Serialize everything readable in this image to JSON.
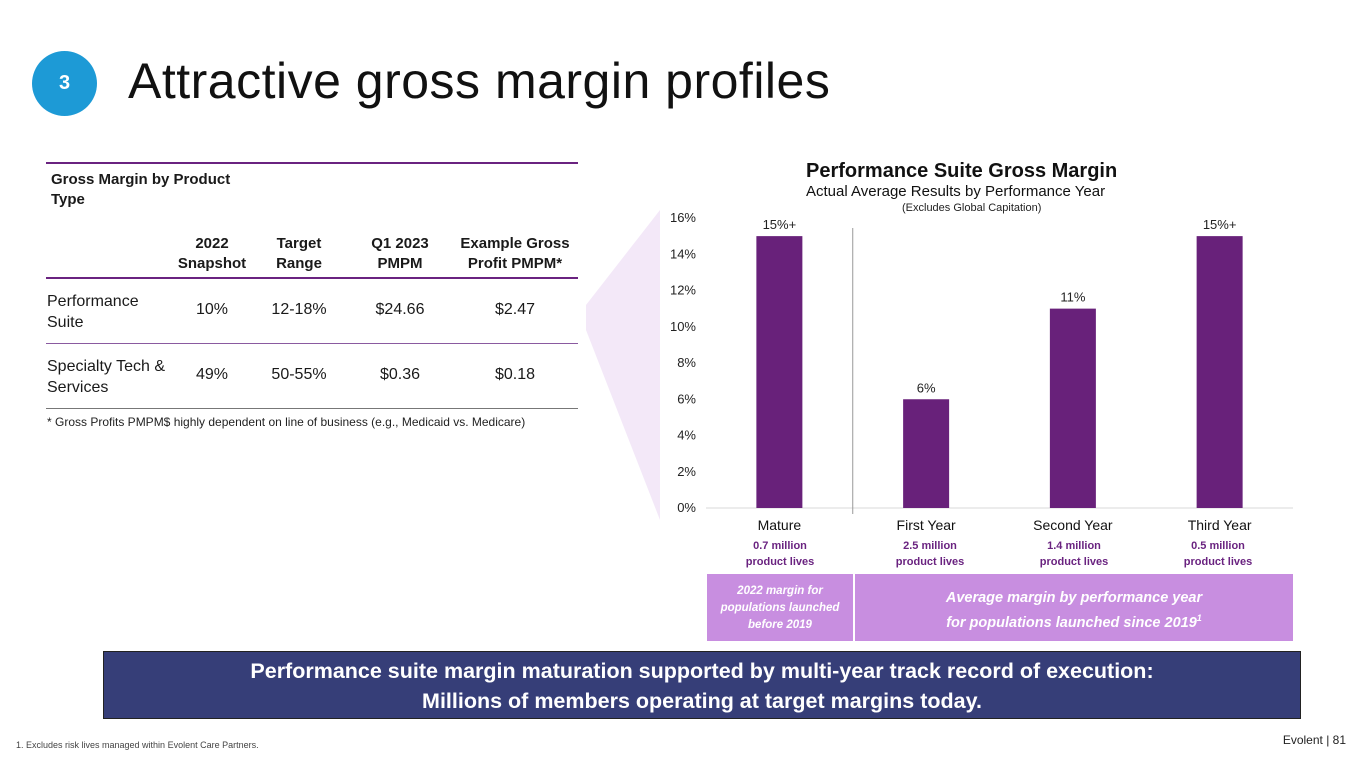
{
  "header": {
    "section_number": "3",
    "title": "Attractive gross margin profiles"
  },
  "table": {
    "caption": "Gross Margin by Product Type",
    "columns": [
      "2022 Snapshot",
      "Target Range",
      "Q1 2023 PMPM",
      "Example Gross Profit PMPM*"
    ],
    "rows": [
      {
        "label": "Performance Suite",
        "values": [
          "10%",
          "12-18%",
          "$24.66",
          "$2.47"
        ]
      },
      {
        "label": "Specialty Tech & Services",
        "values": [
          "49%",
          "50-55%",
          "$0.36",
          "$0.18"
        ]
      }
    ],
    "note": "* Gross Profits PMPM$ highly dependent on line of business (e.g., Medicaid vs. Medicare)"
  },
  "chart_data": {
    "type": "bar",
    "title": "Performance Suite Gross Margin",
    "subtitle": "Actual Average Results by Performance Year",
    "note": "(Excludes Global Capitation)",
    "categories": [
      "Mature",
      "First Year",
      "Second Year",
      "Third Year"
    ],
    "values": [
      15,
      6,
      11,
      15
    ],
    "data_labels": [
      "15%+",
      "6%",
      "11%",
      "15%+"
    ],
    "category_sublabels": [
      [
        "0.7 million",
        "product lives"
      ],
      [
        "2.5 million",
        "product lives"
      ],
      [
        "1.4 million",
        "product lives"
      ],
      [
        "0.5 million",
        "product lives"
      ]
    ],
    "ylim": [
      0,
      16
    ],
    "yticks": [
      "0%",
      "2%",
      "4%",
      "6%",
      "8%",
      "10%",
      "12%",
      "14%",
      "16%"
    ],
    "colors": {
      "bar": "#68217a",
      "sublabel": "#6a2380"
    },
    "grid": false
  },
  "legend": {
    "left_text": "2022 margin for populations launched before 2019",
    "right_line1": "Average margin by performance year",
    "right_line2": "for populations launched since 2019",
    "right_sup": "1"
  },
  "banner": {
    "line1": "Performance suite margin maturation supported by multi-year track record of execution:",
    "line2": "Millions of members operating at target margins today."
  },
  "footer": {
    "footnote": "1.    Excludes risk lives managed within Evolent Care Partners.",
    "brand": "Evolent  |  81"
  },
  "colors": {
    "badge": "#1d9ad6",
    "accent": "#6a2380",
    "legend_fill": "#c88ee0",
    "banner_fill": "#363e78",
    "wedge_fill": "#f3e8f8"
  }
}
